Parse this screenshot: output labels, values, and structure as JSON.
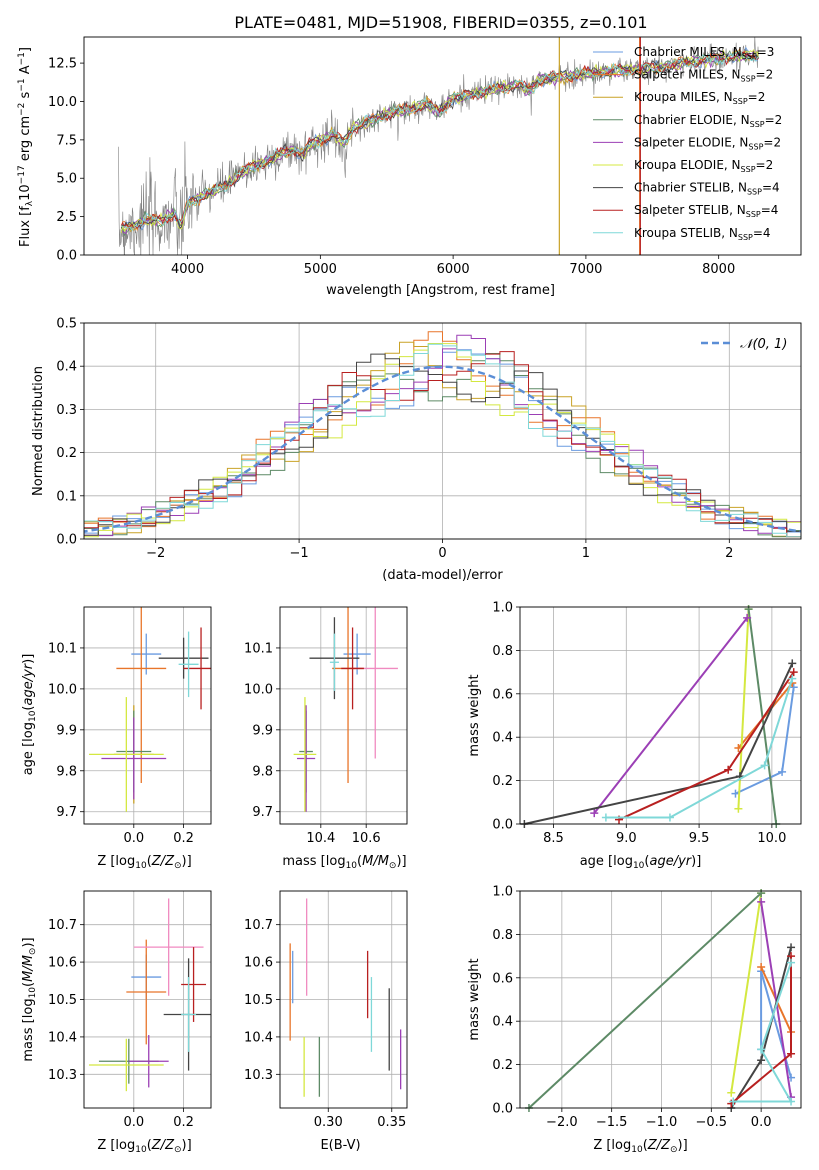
{
  "figure_title": "PLATE=0481, MJD=51908, FIBERID=0355, z=0.101",
  "models": [
    {
      "label": "Chabrier MILES, N",
      "sub": "SSP",
      "tail": "=3",
      "color": "#6a9be0"
    },
    {
      "label": "Salpeter MILES, N",
      "sub": "SSP",
      "tail": "=2",
      "color": "#e8752a"
    },
    {
      "label": "Kroupa MILES, N",
      "sub": "SSP",
      "tail": "=2",
      "color": "#c9a227"
    },
    {
      "label": "Chabrier ELODIE, N",
      "sub": "SSP",
      "tail": "=2",
      "color": "#5d8a66"
    },
    {
      "label": "Salpeter ELODIE, N",
      "sub": "SSP",
      "tail": "=2",
      "color": "#9b3fb5"
    },
    {
      "label": "Kroupa ELODIE, N",
      "sub": "SSP",
      "tail": "=2",
      "color": "#d4e840"
    },
    {
      "label": "Chabrier STELIB, N",
      "sub": "SSP",
      "tail": "=4",
      "color": "#444444"
    },
    {
      "label": "Salpeter STELIB, N",
      "sub": "SSP",
      "tail": "=4",
      "color": "#b82020"
    },
    {
      "label": "Kroupa STELIB, N",
      "sub": "SSP",
      "tail": "=4",
      "color": "#7fd8d8"
    }
  ],
  "colors": {
    "data": "#808080",
    "gauss": "#5b8ed6",
    "grid": "#b0b0b0",
    "pink": "#f08ac0"
  },
  "chart_data": [
    {
      "id": "spectrum",
      "type": "line",
      "xlabel": "wavelength [Angstrom, rest frame]",
      "ylabel": "Flux [f",
      "ylabel_sub": "λ",
      "ylabel_mid": "10",
      "ylabel_exp1": "−17",
      "ylabel_rest": " erg cm",
      "ylabel_exp2": "−2",
      "ylabel_rest2": " s",
      "ylabel_exp3": "−1",
      "ylabel_rest3": " A",
      "ylabel_exp4": "−1",
      "ylabel_end": "]",
      "xlim": [
        3220,
        8620
      ],
      "ylim": [
        0,
        14.2
      ],
      "xticks": [
        "4000",
        "5000",
        "6000",
        "7000",
        "8000"
      ],
      "yticks": [
        "0.0",
        "2.5",
        "5.0",
        "7.5",
        "10.0",
        "12.5"
      ],
      "continuum": [
        [
          3480,
          1.6
        ],
        [
          3600,
          2.0
        ],
        [
          3700,
          2.3
        ],
        [
          3800,
          2.2
        ],
        [
          3900,
          2.7
        ],
        [
          3950,
          1.8
        ],
        [
          4000,
          3.4
        ],
        [
          4100,
          3.8
        ],
        [
          4200,
          4.2
        ],
        [
          4300,
          4.6
        ],
        [
          4400,
          5.3
        ],
        [
          4500,
          5.8
        ],
        [
          4600,
          6.1
        ],
        [
          4700,
          6.6
        ],
        [
          4800,
          6.9
        ],
        [
          4860,
          6.5
        ],
        [
          4900,
          7.0
        ],
        [
          5000,
          7.5
        ],
        [
          5100,
          7.8
        ],
        [
          5175,
          7.3
        ],
        [
          5250,
          8.3
        ],
        [
          5400,
          8.8
        ],
        [
          5500,
          9.2
        ],
        [
          5600,
          9.4
        ],
        [
          5700,
          9.6
        ],
        [
          5800,
          9.9
        ],
        [
          5890,
          9.3
        ],
        [
          6000,
          10.2
        ],
        [
          6100,
          10.4
        ],
        [
          6200,
          10.6
        ],
        [
          6300,
          10.8
        ],
        [
          6400,
          10.9
        ],
        [
          6500,
          11.1
        ],
        [
          6563,
          10.7
        ],
        [
          6650,
          11.4
        ],
        [
          6800,
          11.6
        ],
        [
          7000,
          11.8
        ],
        [
          7200,
          12.0
        ],
        [
          7400,
          12.1
        ],
        [
          7600,
          12.3
        ],
        [
          7800,
          12.6
        ],
        [
          8000,
          12.8
        ],
        [
          8200,
          13.0
        ],
        [
          8300,
          13.0
        ]
      ]
    },
    {
      "id": "residuals",
      "type": "histogram",
      "xlabel": "(data-model)/error",
      "ylabel": "Normed distribution",
      "legend": "𝒩(0, 1)",
      "xlim": [
        -2.5,
        2.5
      ],
      "ylim": [
        0,
        0.5
      ],
      "xticks": [
        "−2",
        "−1",
        "0",
        "1",
        "2"
      ],
      "yticks": [
        "0.0",
        "0.1",
        "0.2",
        "0.3",
        "0.4",
        "0.5"
      ],
      "bin_width": 0.1
    },
    {
      "id": "age_vs_Z",
      "type": "scatter",
      "xlabel": "Z [log",
      "ylabel": "age  [log",
      "xlim": [
        -0.2,
        0.31
      ],
      "ylim": [
        9.67,
        10.2
      ],
      "xticks": [
        "0.0",
        "0.2"
      ],
      "yticks": [
        "9.7",
        "9.8",
        "9.9",
        "10.0",
        "10.1"
      ],
      "points": [
        {
          "m": 0,
          "x": 0.05,
          "y": 10.085,
          "ex": 0.06,
          "ey": 0.05
        },
        {
          "m": 1,
          "x": 0.03,
          "y": 10.05,
          "ex": 0.1,
          "ey": 0.28
        },
        {
          "m": 2,
          "x": 0.0,
          "y": 9.84,
          "ex": 0.08,
          "ey": 0.12
        },
        {
          "m": 3,
          "x": 0.0,
          "y": 9.847,
          "ex": 0.07,
          "ey": 0.1
        },
        {
          "m": 4,
          "x": 0.0,
          "y": 9.83,
          "ex": 0.13,
          "ey": 0.1
        },
        {
          "m": 5,
          "x": -0.03,
          "y": 9.84,
          "ex": 0.15,
          "ey": 0.14
        },
        {
          "m": 6,
          "x": 0.2,
          "y": 10.075,
          "ex": 0.1,
          "ey": 0.05
        },
        {
          "m": 7,
          "x": 0.27,
          "y": 10.05,
          "ex": 0.07,
          "ey": 0.1
        },
        {
          "m": 8,
          "x": 0.22,
          "y": 10.06,
          "ex": 0.04,
          "ey": 0.08
        }
      ]
    },
    {
      "id": "age_vs_mass",
      "type": "scatter",
      "xlabel": "mass [log",
      "ylabel": "",
      "xlim": [
        10.22,
        10.78
      ],
      "ylim": [
        9.67,
        10.2
      ],
      "xticks": [
        "10.4",
        "10.6"
      ],
      "yticks": [
        "9.7",
        "9.8",
        "9.9",
        "10.0",
        "10.1"
      ],
      "points": [
        {
          "m": 0,
          "x": 10.56,
          "y": 10.085,
          "ex": 0.06,
          "ey": 0.05
        },
        {
          "m": 1,
          "x": 10.52,
          "y": 10.05,
          "ex": 0.07,
          "ey": 0.28
        },
        {
          "m": 9,
          "x": 10.64,
          "y": 10.05,
          "ex": 0.1,
          "ey": 0.22
        },
        {
          "m": 3,
          "x": 10.335,
          "y": 9.847,
          "ex": 0.03,
          "ey": 0.1
        },
        {
          "m": 4,
          "x": 10.335,
          "y": 9.83,
          "ex": 0.04,
          "ey": 0.13
        },
        {
          "m": 5,
          "x": 10.33,
          "y": 9.84,
          "ex": 0.05,
          "ey": 0.14
        },
        {
          "m": 6,
          "x": 10.46,
          "y": 10.075,
          "ex": 0.11,
          "ey": 0.1
        },
        {
          "m": 7,
          "x": 10.54,
          "y": 10.05,
          "ex": 0.05,
          "ey": 0.1
        },
        {
          "m": 8,
          "x": 10.46,
          "y": 10.065,
          "ex": 0.02,
          "ey": 0.07
        }
      ]
    },
    {
      "id": "weight_vs_age",
      "type": "line",
      "xlabel": "age  [log",
      "ylabel": "mass weight",
      "xlim": [
        8.27,
        10.2
      ],
      "ylim": [
        0,
        1
      ],
      "xticks": [
        "8.5",
        "9.0",
        "9.5",
        "10.0"
      ],
      "yticks": [
        "0.0",
        "0.2",
        "0.4",
        "0.6",
        "0.8",
        "1.0"
      ],
      "series": [
        {
          "m": 0,
          "pts": [
            [
              9.75,
              0.14
            ],
            [
              10.07,
              0.24
            ],
            [
              10.15,
              0.63
            ]
          ]
        },
        {
          "m": 1,
          "pts": [
            [
              9.77,
              0.35
            ],
            [
              10.14,
              0.65
            ]
          ]
        },
        {
          "m": 5,
          "pts": [
            [
              9.77,
              0.07
            ],
            [
              9.84,
              0.99
            ]
          ]
        },
        {
          "m": 3,
          "pts": [
            [
              9.84,
              0.99
            ],
            [
              10.03,
              0.0
            ]
          ]
        },
        {
          "m": 4,
          "pts": [
            [
              8.78,
              0.05
            ],
            [
              9.83,
              0.95
            ]
          ]
        },
        {
          "m": 6,
          "pts": [
            [
              8.3,
              0.0
            ],
            [
              9.78,
              0.22
            ],
            [
              10.14,
              0.74
            ]
          ]
        },
        {
          "m": 7,
          "pts": [
            [
              8.95,
              0.02
            ],
            [
              9.7,
              0.25
            ],
            [
              10.15,
              0.7
            ]
          ]
        },
        {
          "m": 8,
          "pts": [
            [
              8.86,
              0.03
            ],
            [
              9.3,
              0.03
            ],
            [
              9.95,
              0.27
            ],
            [
              10.14,
              0.67
            ]
          ]
        }
      ]
    },
    {
      "id": "mass_vs_Z",
      "type": "scatter",
      "xlabel": "Z [log",
      "ylabel": "mass [log",
      "xlim": [
        -0.2,
        0.31
      ],
      "ylim": [
        10.21,
        10.79
      ],
      "xticks": [
        "0.0",
        "0.2"
      ],
      "yticks": [
        "10.3",
        "10.4",
        "10.5",
        "10.6",
        "10.7"
      ],
      "points": [
        {
          "m": 0,
          "x": 0.05,
          "y": 10.56,
          "ex": 0.06,
          "ey": 0.06
        },
        {
          "m": 1,
          "x": 0.05,
          "y": 10.52,
          "ex": 0.08,
          "ey": 0.14
        },
        {
          "m": 9,
          "x": 0.14,
          "y": 10.64,
          "ex": 0.14,
          "ey": 0.13
        },
        {
          "m": 3,
          "x": -0.02,
          "y": 10.335,
          "ex": 0.12,
          "ey": 0.06
        },
        {
          "m": 4,
          "x": 0.06,
          "y": 10.335,
          "ex": 0.08,
          "ey": 0.07
        },
        {
          "m": 5,
          "x": -0.03,
          "y": 10.325,
          "ex": 0.15,
          "ey": 0.07
        },
        {
          "m": 6,
          "x": 0.22,
          "y": 10.46,
          "ex": 0.1,
          "ey": 0.15
        },
        {
          "m": 7,
          "x": 0.24,
          "y": 10.54,
          "ex": 0.05,
          "ey": 0.1
        },
        {
          "m": 8,
          "x": 0.22,
          "y": 10.46,
          "ex": 0.03,
          "ey": 0.1
        }
      ]
    },
    {
      "id": "mass_vs_EBV",
      "type": "scatter",
      "xlabel": "E(B-V)",
      "ylabel": "",
      "xlim": [
        0.262,
        0.362
      ],
      "ylim": [
        10.21,
        10.79
      ],
      "xticks": [
        "0.30",
        "0.35"
      ],
      "yticks": [
        "10.3",
        "10.4",
        "10.5",
        "10.6",
        "10.7"
      ],
      "points": [
        {
          "m": 0,
          "x": 0.272,
          "y": 10.56,
          "ex": 0,
          "ey": 0.07
        },
        {
          "m": 1,
          "x": 0.27,
          "y": 10.52,
          "ex": 0,
          "ey": 0.13
        },
        {
          "m": 9,
          "x": 0.283,
          "y": 10.64,
          "ex": 0,
          "ey": 0.13
        },
        {
          "m": 3,
          "x": 0.293,
          "y": 10.32,
          "ex": 0,
          "ey": 0.08
        },
        {
          "m": 4,
          "x": 0.357,
          "y": 10.34,
          "ex": 0,
          "ey": 0.08
        },
        {
          "m": 5,
          "x": 0.281,
          "y": 10.32,
          "ex": 0,
          "ey": 0.08
        },
        {
          "m": 6,
          "x": 0.348,
          "y": 10.42,
          "ex": 0,
          "ey": 0.11
        },
        {
          "m": 7,
          "x": 0.331,
          "y": 10.54,
          "ex": 0,
          "ey": 0.09
        },
        {
          "m": 8,
          "x": 0.334,
          "y": 10.46,
          "ex": 0,
          "ey": 0.1
        }
      ]
    },
    {
      "id": "weight_vs_Z",
      "type": "line",
      "xlabel": "Z [log",
      "ylabel": "mass weight",
      "xlim": [
        -2.42,
        0.4
      ],
      "ylim": [
        0,
        1
      ],
      "xticks": [
        "−2.0",
        "−1.5",
        "−1.0",
        "−0.5",
        "0.0"
      ],
      "yticks": [
        "0.0",
        "0.2",
        "0.4",
        "0.6",
        "0.8",
        "1.0"
      ],
      "series": [
        {
          "m": 0,
          "pts": [
            [
              0.0,
              0.27
            ],
            [
              0.0,
              0.63
            ],
            [
              0.3,
              0.14
            ]
          ]
        },
        {
          "m": 1,
          "pts": [
            [
              0.0,
              0.65
            ],
            [
              0.3,
              0.35
            ]
          ]
        },
        {
          "m": 5,
          "pts": [
            [
              -0.3,
              0.07
            ],
            [
              0.0,
              0.99
            ]
          ]
        },
        {
          "m": 3,
          "pts": [
            [
              -2.33,
              0.0
            ],
            [
              0.0,
              0.99
            ]
          ]
        },
        {
          "m": 4,
          "pts": [
            [
              0.0,
              0.95
            ],
            [
              0.3,
              0.05
            ]
          ]
        },
        {
          "m": 6,
          "pts": [
            [
              -0.3,
              0.0
            ],
            [
              0.0,
              0.22
            ],
            [
              0.3,
              0.74
            ]
          ]
        },
        {
          "m": 7,
          "pts": [
            [
              -0.3,
              0.02
            ],
            [
              0.3,
              0.25
            ],
            [
              0.3,
              0.7
            ]
          ]
        },
        {
          "m": 8,
          "pts": [
            [
              -0.28,
              0.03
            ],
            [
              0.3,
              0.03
            ],
            [
              0.0,
              0.27
            ],
            [
              0.3,
              0.67
            ]
          ]
        }
      ]
    }
  ]
}
